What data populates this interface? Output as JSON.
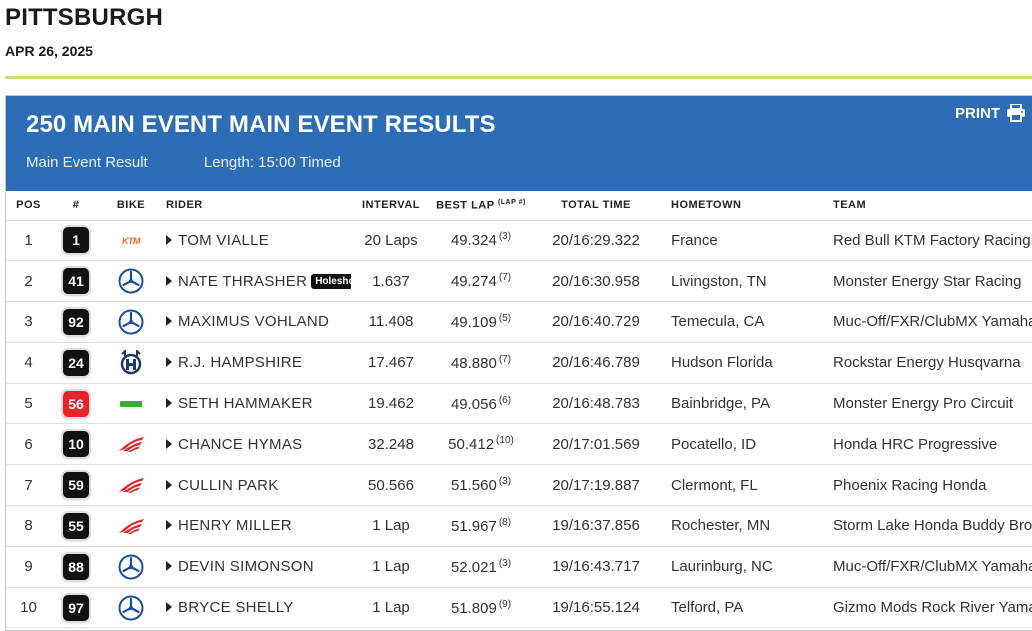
{
  "event": {
    "title": "PITTSBURGH",
    "date": "APR 26, 2025"
  },
  "panel": {
    "title": "250 MAIN EVENT MAIN EVENT RESULTS",
    "result_label": "Main Event Result",
    "length_label": "Length: 15:00 Timed",
    "print_label": "PRINT",
    "print_icon": "printer-icon"
  },
  "columns": {
    "pos": "POS",
    "num": "#",
    "bike": "BIKE",
    "rider": "RIDER",
    "interval": "INTERVAL",
    "best_lap": "BEST LAP",
    "best_lap_sup": "(LAP #)",
    "total_time": "TOTAL TIME",
    "hometown": "HOMETOWN",
    "team": "TEAM"
  },
  "rows": [
    {
      "pos": "1",
      "num": "1",
      "plate": "black",
      "bike": "ktm",
      "rider": "TOM VIALLE",
      "badge": "",
      "interval": "20 Laps",
      "best_lap": "49.324",
      "lap_num": "(3)",
      "total": "20/16:29.322",
      "hometown": "France",
      "team": "Red Bull KTM Factory Racing"
    },
    {
      "pos": "2",
      "num": "41",
      "plate": "black",
      "bike": "yamaha",
      "rider": "NATE THRASHER",
      "badge": "Holeshot",
      "interval": "1.637",
      "best_lap": "49.274",
      "lap_num": "(7)",
      "total": "20/16:30.958",
      "hometown": "Livingston, TN",
      "team": "Monster Energy Star Racing"
    },
    {
      "pos": "3",
      "num": "92",
      "plate": "black",
      "bike": "yamaha",
      "rider": "MAXIMUS VOHLAND",
      "badge": "",
      "interval": "11.408",
      "best_lap": "49.109",
      "lap_num": "(5)",
      "total": "20/16:40.729",
      "hometown": "Temecula, CA",
      "team": "Muc-Off/FXR/ClubMX Yamaha"
    },
    {
      "pos": "4",
      "num": "24",
      "plate": "black",
      "bike": "husqvarna",
      "rider": "R.J. HAMPSHIRE",
      "badge": "",
      "interval": "17.467",
      "best_lap": "48.880",
      "lap_num": "(7)",
      "total": "20/16:46.789",
      "hometown": "Hudson Florida",
      "team": "Rockstar Energy Husqvarna"
    },
    {
      "pos": "5",
      "num": "56",
      "plate": "red",
      "bike": "kawasaki",
      "rider": "SETH HAMMAKER",
      "badge": "",
      "interval": "19.462",
      "best_lap": "49.056",
      "lap_num": "(6)",
      "total": "20/16:48.783",
      "hometown": "Bainbridge, PA",
      "team": "Monster Energy Pro Circuit"
    },
    {
      "pos": "6",
      "num": "10",
      "plate": "black",
      "bike": "honda",
      "rider": "CHANCE HYMAS",
      "badge": "",
      "interval": "32.248",
      "best_lap": "50.412",
      "lap_num": "(10)",
      "total": "20/17:01.569",
      "hometown": "Pocatello, ID",
      "team": "Honda HRC Progressive"
    },
    {
      "pos": "7",
      "num": "59",
      "plate": "black",
      "bike": "honda",
      "rider": "CULLIN PARK",
      "badge": "",
      "interval": "50.566",
      "best_lap": "51.560",
      "lap_num": "(3)",
      "total": "20/17:19.887",
      "hometown": "Clermont, FL",
      "team": "Phoenix Racing Honda"
    },
    {
      "pos": "8",
      "num": "55",
      "plate": "black",
      "bike": "honda",
      "rider": "HENRY MILLER",
      "badge": "",
      "interval": "1 Lap",
      "best_lap": "51.967",
      "lap_num": "(8)",
      "total": "19/16:37.856",
      "hometown": "Rochester, MN",
      "team": "Storm Lake Honda Buddy Brooks"
    },
    {
      "pos": "9",
      "num": "88",
      "plate": "black",
      "bike": "yamaha",
      "rider": "DEVIN SIMONSON",
      "badge": "",
      "interval": "1 Lap",
      "best_lap": "52.021",
      "lap_num": "(3)",
      "total": "19/16:43.717",
      "hometown": "Laurinburg, NC",
      "team": "Muc-Off/FXR/ClubMX Yamaha"
    },
    {
      "pos": "10",
      "num": "97",
      "plate": "black",
      "bike": "yamaha",
      "rider": "BRYCE SHELLY",
      "badge": "",
      "interval": "1 Lap",
      "best_lap": "51.809",
      "lap_num": "(9)",
      "total": "19/16:55.124",
      "hometown": "Telford, PA",
      "team": "Gizmo Mods Rock River Yamaha"
    }
  ]
}
